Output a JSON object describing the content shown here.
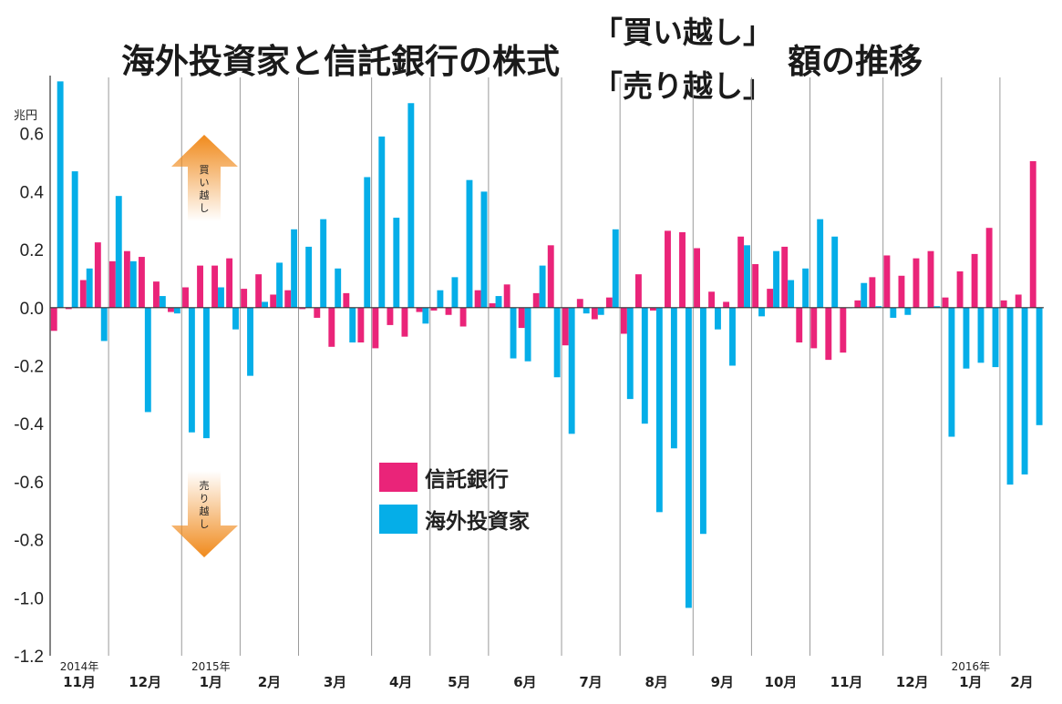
{
  "title": {
    "part1": "海外投資家と信託銀行の株式",
    "bracket_top": "「買い越し」",
    "bracket_bottom": "「売り越し」",
    "part2": "額の推移"
  },
  "unit_label": "兆円",
  "arrows": {
    "up_label": "買い越し",
    "down_label": "売り越し",
    "up_color": "#f08a1c",
    "down_color": "#f08a1c"
  },
  "chart_data": {
    "type": "bar",
    "ylim": [
      -1.2,
      0.8
    ],
    "yticks": [
      "0.6",
      "0.4",
      "0.2",
      "0.0",
      "-0.2",
      "-0.4",
      "-0.6",
      "-0.8",
      "-1.0",
      "-1.2"
    ],
    "ytick_values": [
      0.6,
      0.4,
      0.2,
      0.0,
      -0.2,
      -0.4,
      -0.6,
      -0.8,
      -1.0,
      -1.2
    ],
    "grid": false,
    "legend_position": "center",
    "months": [
      {
        "label": "11月",
        "year": "2014年",
        "weeks": 4
      },
      {
        "label": "12月",
        "year": "",
        "weeks": 5
      },
      {
        "label": "1月",
        "year": "2015年",
        "weeks": 4
      },
      {
        "label": "2月",
        "year": "",
        "weeks": 4
      },
      {
        "label": "3月",
        "year": "",
        "weeks": 5
      },
      {
        "label": "4月",
        "year": "",
        "weeks": 4
      },
      {
        "label": "5月",
        "year": "",
        "weeks": 4
      },
      {
        "label": "6月",
        "year": "",
        "weeks": 5
      },
      {
        "label": "7月",
        "year": "",
        "weeks": 4
      },
      {
        "label": "8月",
        "year": "",
        "weeks": 5
      },
      {
        "label": "9月",
        "year": "",
        "weeks": 4
      },
      {
        "label": "10月",
        "year": "",
        "weeks": 4
      },
      {
        "label": "11月",
        "year": "",
        "weeks": 5
      },
      {
        "label": "12月",
        "year": "",
        "weeks": 4
      },
      {
        "label": "1月",
        "year": "2016年",
        "weeks": 4
      },
      {
        "label": "2月",
        "year": "",
        "weeks": 3
      }
    ],
    "series": [
      {
        "name": "信託銀行",
        "color": "#ea2479",
        "values": [
          -0.08,
          -0.005,
          0.095,
          0.225,
          0.16,
          0.195,
          0.175,
          0.09,
          -0.015,
          0.07,
          0.145,
          0.145,
          0.17,
          0.065,
          0.115,
          0.045,
          0.06,
          -0.005,
          -0.035,
          -0.135,
          0.05,
          -0.12,
          -0.14,
          -0.06,
          -0.1,
          -0.015,
          -0.01,
          -0.025,
          -0.065,
          0.06,
          0.015,
          0.08,
          -0.07,
          0.05,
          0.215,
          -0.13,
          0.03,
          -0.04,
          0.035,
          -0.09,
          0.115,
          -0.01,
          0.265,
          0.26,
          0.205,
          0.055,
          0.02,
          0.245,
          0.15,
          0.065,
          0.21,
          -0.12,
          -0.14,
          -0.18,
          -0.155,
          0.025,
          0.105,
          0.18,
          0.11,
          0.17,
          0.195,
          0.035,
          0.125,
          0.185,
          0.275,
          0.025,
          0.045,
          0.505
        ]
      },
      {
        "name": "海外投資家",
        "color": "#05aee8",
        "values": [
          0.78,
          0.47,
          0.135,
          -0.115,
          0.385,
          0.16,
          -0.36,
          0.04,
          -0.02,
          -0.43,
          -0.45,
          0.07,
          -0.075,
          -0.235,
          0.02,
          0.155,
          0.27,
          0.21,
          0.305,
          0.135,
          -0.12,
          0.45,
          0.59,
          0.31,
          0.705,
          -0.055,
          0.06,
          0.105,
          0.44,
          0.4,
          0.04,
          -0.175,
          -0.185,
          0.145,
          -0.24,
          -0.435,
          -0.02,
          -0.025,
          0.27,
          -0.315,
          -0.4,
          -0.705,
          -0.485,
          -1.035,
          -0.78,
          -0.075,
          -0.2,
          0.215,
          -0.03,
          0.195,
          0.095,
          0.135,
          0.305,
          0.245,
          0.0,
          0.085,
          0.005,
          -0.035,
          -0.025,
          0.0,
          0.005,
          -0.445,
          -0.21,
          -0.19,
          -0.205,
          -0.61,
          -0.575,
          -0.405
        ]
      }
    ]
  }
}
